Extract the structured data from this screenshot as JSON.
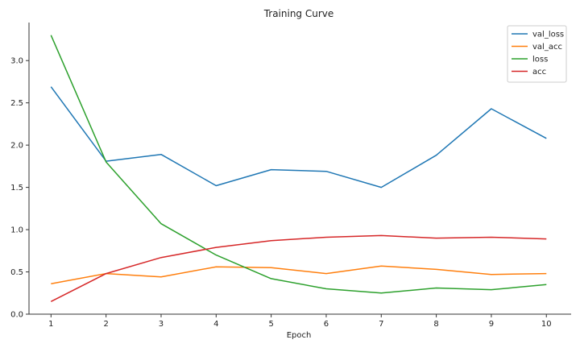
{
  "chart_data": {
    "type": "line",
    "title": "Training Curve",
    "xlabel": "Epoch",
    "ylabel": "",
    "x": [
      1,
      2,
      3,
      4,
      5,
      6,
      7,
      8,
      9,
      10
    ],
    "xlim": [
      0.6,
      10.45
    ],
    "ylim": [
      0.0,
      3.45
    ],
    "xticks": [
      1,
      2,
      3,
      4,
      5,
      6,
      7,
      8,
      9,
      10
    ],
    "yticks": [
      0.0,
      0.5,
      1.0,
      1.5,
      2.0,
      2.5,
      3.0
    ],
    "ytick_labels": [
      "0.0",
      "0.5",
      "1.0",
      "1.5",
      "2.0",
      "2.5",
      "3.0"
    ],
    "grid": false,
    "legend_position": "top-right",
    "series": [
      {
        "name": "val_loss",
        "color": "#1f77b4",
        "values": [
          2.69,
          1.81,
          1.89,
          1.52,
          1.71,
          1.69,
          1.5,
          1.88,
          2.43,
          2.08
        ]
      },
      {
        "name": "val_acc",
        "color": "#ff7f0e",
        "values": [
          0.36,
          0.48,
          0.44,
          0.56,
          0.55,
          0.48,
          0.57,
          0.53,
          0.47,
          0.48
        ]
      },
      {
        "name": "loss",
        "color": "#2ca02c",
        "values": [
          3.3,
          1.8,
          1.07,
          0.7,
          0.42,
          0.3,
          0.25,
          0.31,
          0.29,
          0.35
        ]
      },
      {
        "name": "acc",
        "color": "#d62728",
        "values": [
          0.15,
          0.48,
          0.67,
          0.79,
          0.87,
          0.91,
          0.93,
          0.9,
          0.91,
          0.89
        ]
      }
    ]
  }
}
